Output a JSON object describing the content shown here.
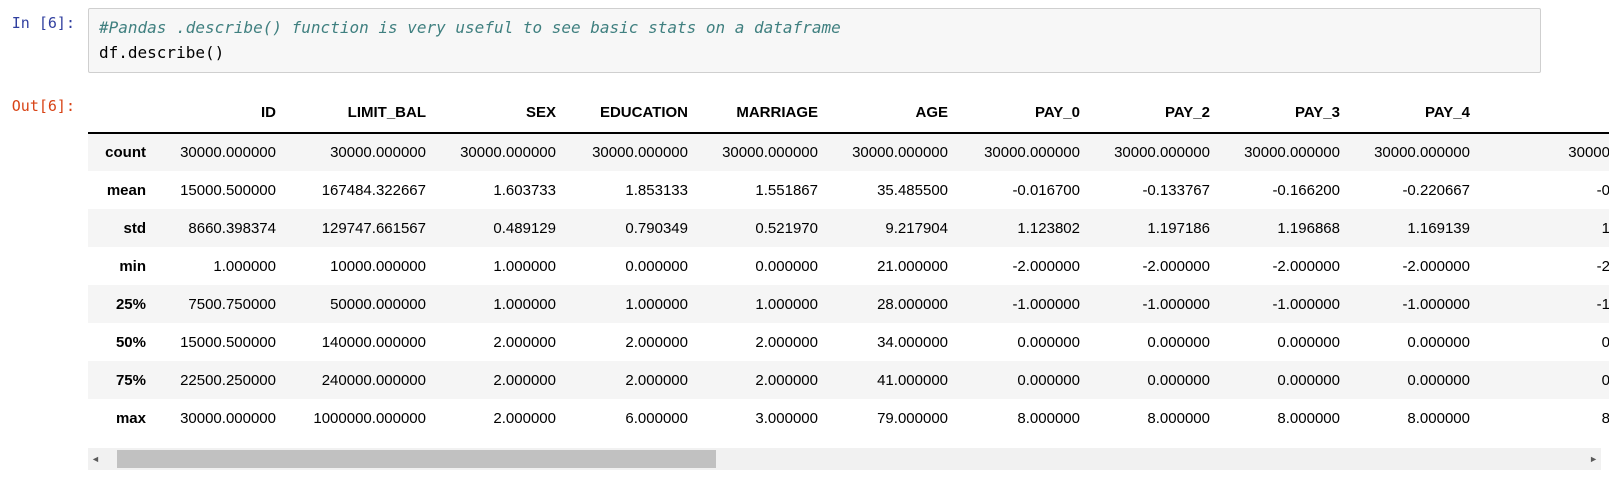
{
  "notebook": {
    "input_prompt": "In [6]:",
    "output_prompt": "Out[6]:",
    "code": {
      "comment": "#Pandas .describe() function is very useful to see basic stats on a dataframe",
      "statement": "df.describe()"
    }
  },
  "colors": {
    "input_prompt": "#303F9F",
    "output_prompt": "#D84315",
    "code_comment": "#408080",
    "input_cell_bg": "#f7f7f7",
    "input_cell_border": "#cfcfcf",
    "table_row_stripe": "#f5f5f5",
    "scrollbar_track": "#f1f1f1",
    "scrollbar_thumb": "#c1c1c1"
  },
  "scrollbar": {
    "left_arrow_icon": "◄",
    "right_arrow_icon": "►"
  },
  "table": {
    "columns": [
      "ID",
      "LIMIT_BAL",
      "SEX",
      "EDUCATION",
      "MARRIAGE",
      "AGE",
      "PAY_0",
      "PAY_2",
      "PAY_3",
      "PAY_4"
    ],
    "rows": [
      {
        "label": "count",
        "values": [
          "30000.000000",
          "30000.000000",
          "30000.000000",
          "30000.000000",
          "30000.000000",
          "30000.000000",
          "30000.000000",
          "30000.000000",
          "30000.000000",
          "30000.000000"
        ],
        "overflow": "30000"
      },
      {
        "label": "mean",
        "values": [
          "15000.500000",
          "167484.322667",
          "1.603733",
          "1.853133",
          "1.551867",
          "35.485500",
          "-0.016700",
          "-0.133767",
          "-0.166200",
          "-0.220667"
        ],
        "overflow": "-0"
      },
      {
        "label": "std",
        "values": [
          "8660.398374",
          "129747.661567",
          "0.489129",
          "0.790349",
          "0.521970",
          "9.217904",
          "1.123802",
          "1.197186",
          "1.196868",
          "1.169139"
        ],
        "overflow": "1"
      },
      {
        "label": "min",
        "values": [
          "1.000000",
          "10000.000000",
          "1.000000",
          "0.000000",
          "0.000000",
          "21.000000",
          "-2.000000",
          "-2.000000",
          "-2.000000",
          "-2.000000"
        ],
        "overflow": "-2"
      },
      {
        "label": "25%",
        "values": [
          "7500.750000",
          "50000.000000",
          "1.000000",
          "1.000000",
          "1.000000",
          "28.000000",
          "-1.000000",
          "-1.000000",
          "-1.000000",
          "-1.000000"
        ],
        "overflow": "-1"
      },
      {
        "label": "50%",
        "values": [
          "15000.500000",
          "140000.000000",
          "2.000000",
          "2.000000",
          "2.000000",
          "34.000000",
          "0.000000",
          "0.000000",
          "0.000000",
          "0.000000"
        ],
        "overflow": "0"
      },
      {
        "label": "75%",
        "values": [
          "22500.250000",
          "240000.000000",
          "2.000000",
          "2.000000",
          "2.000000",
          "41.000000",
          "0.000000",
          "0.000000",
          "0.000000",
          "0.000000"
        ],
        "overflow": "0"
      },
      {
        "label": "max",
        "values": [
          "30000.000000",
          "1000000.000000",
          "2.000000",
          "6.000000",
          "3.000000",
          "79.000000",
          "8.000000",
          "8.000000",
          "8.000000",
          "8.000000"
        ],
        "overflow": "8"
      }
    ]
  }
}
